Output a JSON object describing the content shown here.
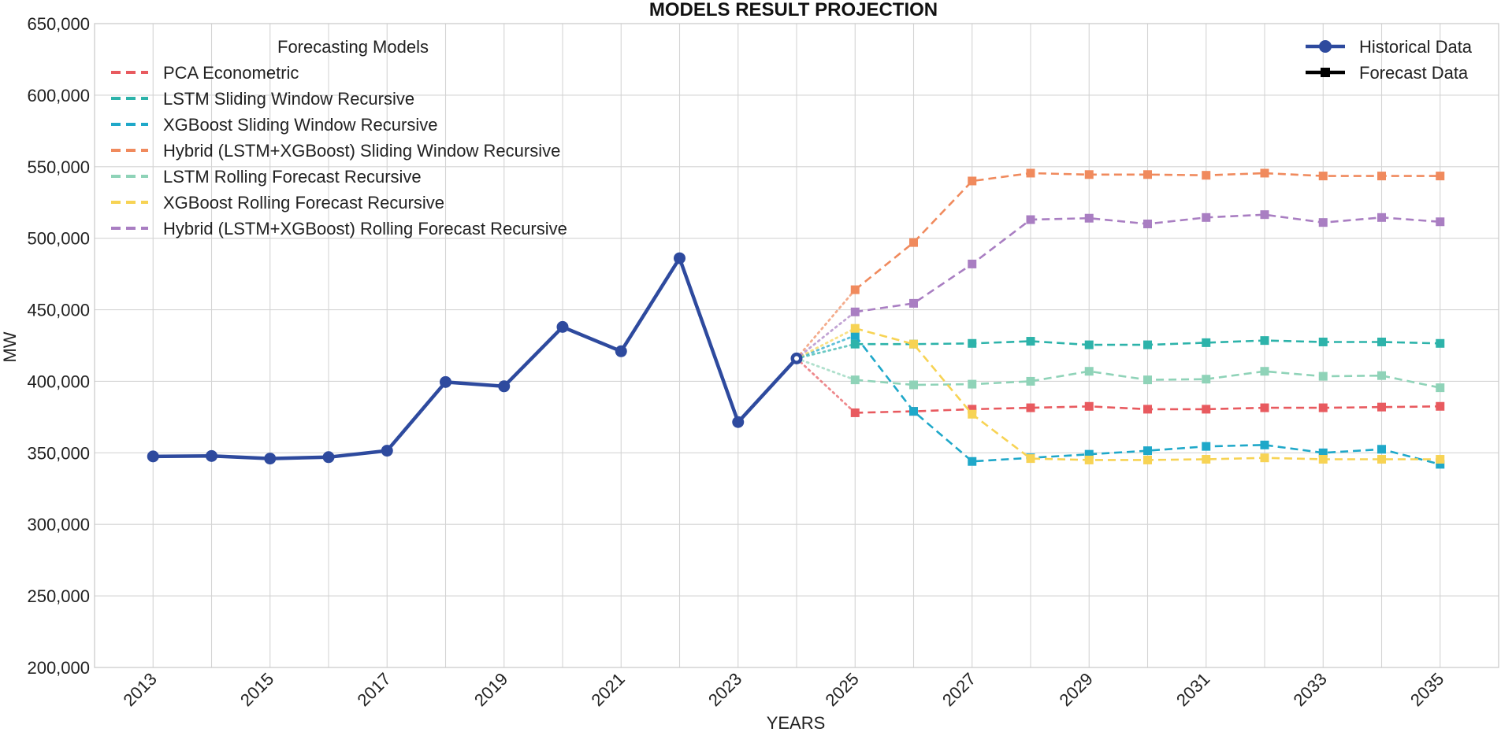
{
  "chart_data": {
    "type": "line",
    "title": "MODELS RESULT PROJECTION",
    "xlabel": "YEARS",
    "ylabel": "MW",
    "xlim": [
      2012,
      2036
    ],
    "ylim": [
      200000,
      650000
    ],
    "x_ticks": [
      "2013",
      "2015",
      "2017",
      "2019",
      "2021",
      "2023",
      "2025",
      "2027",
      "2029",
      "2031",
      "2033",
      "2035"
    ],
    "x_tick_values": [
      2013,
      2015,
      2017,
      2019,
      2021,
      2023,
      2025,
      2027,
      2029,
      2031,
      2033,
      2035
    ],
    "y_ticks": [
      "200,000",
      "250,000",
      "300,000",
      "350,000",
      "400,000",
      "450,000",
      "500,000",
      "550,000",
      "600,000",
      "650,000"
    ],
    "y_tick_values": [
      200000,
      250000,
      300000,
      350000,
      400000,
      450000,
      500000,
      550000,
      600000,
      650000
    ],
    "x_minor_grid": [
      2014,
      2016,
      2018,
      2020,
      2022,
      2024,
      2026,
      2028,
      2030,
      2032,
      2034
    ],
    "grid": true,
    "historical": {
      "name": "Historical Data",
      "color": "#2e4a9e",
      "x": [
        2013,
        2014,
        2015,
        2016,
        2017,
        2018,
        2019,
        2020,
        2021,
        2022,
        2023,
        2024
      ],
      "values": [
        347500,
        347800,
        346000,
        347000,
        351500,
        399500,
        396500,
        438000,
        421000,
        486000,
        371500,
        416000
      ]
    },
    "forecast_x": [
      2025,
      2026,
      2027,
      2028,
      2029,
      2030,
      2031,
      2032,
      2033,
      2034,
      2035
    ],
    "forecast_legend_title": "Forecasting Models",
    "forecast_marker_label": "Forecast Data",
    "series": [
      {
        "name": "PCA Econometric",
        "color": "#e85a5f",
        "values": [
          378000,
          379000,
          380500,
          381500,
          382500,
          380500,
          380500,
          381500,
          381500,
          382000,
          382500
        ]
      },
      {
        "name": "LSTM Sliding Window Recursive",
        "color": "#2db3aa",
        "values": [
          426000,
          426000,
          426500,
          428000,
          425500,
          425500,
          427000,
          428500,
          427500,
          427500,
          426500
        ]
      },
      {
        "name": "XGBoost Sliding Window Recursive",
        "color": "#1fa8c9",
        "values": [
          432000,
          379000,
          344000,
          346500,
          349000,
          351500,
          354500,
          355500,
          350000,
          352500,
          342000
        ]
      },
      {
        "name": "Hybrid (LSTM+XGBoost) Sliding Window Recursive",
        "color": "#f08a5d",
        "values": [
          464000,
          497000,
          540000,
          545500,
          544500,
          544500,
          544000,
          545500,
          543500,
          543500,
          543500
        ]
      },
      {
        "name": "LSTM Rolling Forecast Recursive",
        "color": "#8fd3b8",
        "values": [
          401000,
          397500,
          398000,
          400000,
          407000,
          401000,
          401500,
          407000,
          403500,
          404000,
          395500
        ]
      },
      {
        "name": "XGBoost Rolling Forecast Recursive",
        "color": "#f7d354",
        "values": [
          437000,
          426000,
          377000,
          346000,
          345000,
          345000,
          345500,
          346500,
          345500,
          345500,
          345500
        ]
      },
      {
        "name": "Hybrid (LSTM+XGBoost) Rolling Forecast Recursive",
        "color": "#a97ec2",
        "values": [
          448500,
          454500,
          482000,
          513000,
          514000,
          510000,
          514500,
          516500,
          511000,
          514500,
          511500
        ]
      }
    ]
  }
}
